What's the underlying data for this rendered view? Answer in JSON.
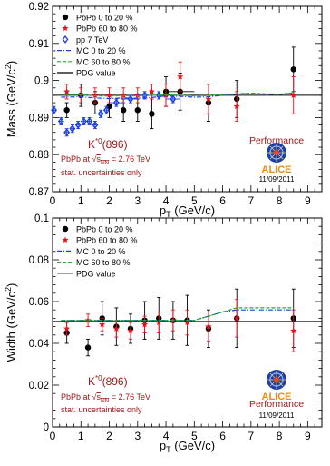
{
  "colors": {
    "pbpb_central": "#000000",
    "pbpb_peripheral": "#e8101a",
    "pp": "#1a3ee0",
    "mc_central": "#1a3ee0",
    "mc_peripheral": "#22b022",
    "pdg": "#000000",
    "annotation": "#a01818"
  },
  "chart_data": [
    {
      "type": "scatter",
      "xlabel": "p_T (GeV/c)",
      "ylabel": "Mass (GeV/c^2)",
      "xlim": [
        0,
        9.5
      ],
      "ylim": [
        0.87,
        0.92
      ],
      "xticks": [
        0,
        1,
        2,
        3,
        4,
        5,
        6,
        7,
        8,
        9
      ],
      "yticks": [
        "0.87",
        "0.88",
        "0.89",
        "0.9",
        "0.91",
        "0.92"
      ],
      "legend_position": "top-left",
      "legend": [
        {
          "name": "PbPb 0 to 20 %",
          "key": "pbpb_central",
          "marker": "circle"
        },
        {
          "name": "PbPb 60 to 80 %",
          "key": "pbpb_peripheral",
          "marker": "star"
        },
        {
          "name": "pp 7 TeV",
          "key": "pp",
          "marker": "diamond"
        },
        {
          "name": "MC 0 to 20 %",
          "key": "mc_central",
          "marker": "dashdot"
        },
        {
          "name": "MC 60 to 80 %",
          "key": "mc_peripheral",
          "marker": "dash"
        },
        {
          "name": "PDG value",
          "key": "pdg",
          "marker": "line"
        }
      ],
      "annotation": {
        "particle": "K*0(896)",
        "system": "PbPb at √sNN = 2.76 TeV",
        "note": "stat. uncertainties only"
      },
      "badge": {
        "performance": "Performance",
        "logo_text": "ALICE",
        "date": "11/09/2011"
      },
      "pdg_value": 0.896,
      "series": [
        {
          "name": "PbPb 0 to 20 %",
          "key": "pbpb_central",
          "marker": "circle",
          "x": [
            0.5,
            1.0,
            1.5,
            2.0,
            2.5,
            3.0,
            3.5,
            4.0,
            4.5,
            5.5,
            6.5,
            8.5
          ],
          "y": [
            0.892,
            0.896,
            0.894,
            0.893,
            0.892,
            0.892,
            0.891,
            0.897,
            0.897,
            0.894,
            0.895,
            0.903
          ],
          "err": [
            0.002,
            0.003,
            0.003,
            0.003,
            0.003,
            0.003,
            0.004,
            0.004,
            0.005,
            0.005,
            0.005,
            0.006
          ],
          "xerr": [
            0,
            0,
            0,
            0,
            0,
            0,
            0,
            0,
            0.5,
            0,
            0,
            0
          ]
        },
        {
          "name": "PbPb 60 to 80 %",
          "key": "pbpb_peripheral",
          "marker": "star",
          "x": [
            0.5,
            1.0,
            1.5,
            2.0,
            2.5,
            3.0,
            3.5,
            4.0,
            4.5,
            5.5,
            6.5,
            8.5
          ],
          "y": [
            0.897,
            0.896,
            0.896,
            0.896,
            0.896,
            0.896,
            0.897,
            0.896,
            0.901,
            0.895,
            0.893,
            0.896
          ],
          "err": [
            0.002,
            0.002,
            0.002,
            0.002,
            0.002,
            0.002,
            0.002,
            0.003,
            0.004,
            0.004,
            0.004,
            0.005
          ],
          "xerr": [
            0,
            0,
            0,
            0,
            0,
            0,
            0,
            0,
            0,
            0,
            0,
            0
          ]
        },
        {
          "name": "pp 7 TeV",
          "key": "pp",
          "marker": "diamond",
          "x": [
            0.05,
            0.3,
            0.5,
            0.7,
            0.9,
            1.1,
            1.3,
            1.5,
            1.7,
            1.9,
            2.25,
            2.75,
            3.25,
            3.75,
            4.25
          ],
          "y": [
            0.892,
            0.889,
            0.886,
            0.887,
            0.888,
            0.889,
            0.889,
            0.888,
            0.891,
            0.892,
            0.894,
            0.895,
            0.896,
            0.896,
            0.895
          ],
          "err": [
            0.001,
            0.001,
            0.001,
            0.001,
            0.001,
            0.001,
            0.001,
            0.001,
            0.001,
            0.001,
            0.001,
            0.001,
            0.001,
            0.001,
            0.001
          ],
          "xerr": [
            0.05,
            0.1,
            0.1,
            0.1,
            0.1,
            0.1,
            0.1,
            0.1,
            0.1,
            0.1,
            0.25,
            0.25,
            0.25,
            0.25,
            0.25
          ]
        },
        {
          "name": "MC 0 to 20 %",
          "key": "mc_central",
          "marker": "dashdot",
          "x": [
            0.3,
            1,
            1.5,
            2,
            2.5,
            3,
            3.5,
            4,
            4.5,
            5,
            5.5,
            6,
            6.5,
            7,
            7.5,
            8,
            8.5
          ],
          "y": [
            0.8955,
            0.8956,
            0.8953,
            0.8951,
            0.8953,
            0.8952,
            0.8954,
            0.8958,
            0.8957,
            0.8955,
            0.8956,
            0.896,
            0.8963,
            0.8965,
            0.8963,
            0.8962,
            0.8966
          ]
        },
        {
          "name": "MC 60 to 80 %",
          "key": "mc_peripheral",
          "marker": "dash",
          "x": [
            0.3,
            1,
            1.5,
            2,
            2.5,
            3,
            3.5,
            4,
            4.5,
            5,
            5.5,
            6,
            6.5,
            7,
            7.5,
            8,
            8.5
          ],
          "y": [
            0.8962,
            0.8962,
            0.8958,
            0.8958,
            0.8959,
            0.8958,
            0.896,
            0.8961,
            0.896,
            0.8958,
            0.8959,
            0.8962,
            0.8964,
            0.8966,
            0.8964,
            0.8963,
            0.8967
          ]
        }
      ]
    },
    {
      "type": "scatter",
      "xlabel": "p_T (GeV/c)",
      "ylabel": "Width (GeV/c^2)",
      "xlim": [
        0,
        9.5
      ],
      "ylim": [
        0,
        0.1
      ],
      "xticks": [
        0,
        1,
        2,
        3,
        4,
        5,
        6,
        7,
        8,
        9
      ],
      "yticks": [
        "0",
        "0.02",
        "0.04",
        "0.06",
        "0.08",
        "0.1"
      ],
      "legend_position": "top-left",
      "legend": [
        {
          "name": "PbPb 0 to 20 %",
          "key": "pbpb_central",
          "marker": "circle"
        },
        {
          "name": "PbPb 60 to 80 %",
          "key": "pbpb_peripheral",
          "marker": "star"
        },
        {
          "name": "MC 0 to 20 %",
          "key": "mc_central",
          "marker": "dashdot"
        },
        {
          "name": "MC 60 to 80 %",
          "key": "mc_peripheral",
          "marker": "dash"
        },
        {
          "name": "PDG value",
          "key": "pdg",
          "marker": "line"
        }
      ],
      "annotation": {
        "particle": "K*0(896)",
        "system": "PbPb at √sNN = 2.76 TeV",
        "note": "stat. uncertainties only"
      },
      "badge": {
        "performance": "Performance",
        "logo_text": "ALICE",
        "date": "11/09/2011"
      },
      "pdg_value": 0.0505,
      "series": [
        {
          "name": "PbPb 0 to 20 %",
          "key": "pbpb_central",
          "marker": "circle",
          "x": [
            0.5,
            1.25,
            1.75,
            2.25,
            2.75,
            3.25,
            3.75,
            4.25,
            4.75,
            5.5,
            6.5,
            8.5
          ],
          "y": [
            0.045,
            0.038,
            0.052,
            0.048,
            0.047,
            0.051,
            0.052,
            0.051,
            0.051,
            0.047,
            0.052,
            0.052
          ],
          "err": [
            0.005,
            0.004,
            0.008,
            0.009,
            0.007,
            0.009,
            0.01,
            0.009,
            0.012,
            0.009,
            0.014,
            0.014
          ],
          "xerr": [
            0,
            0,
            0,
            0,
            0,
            0,
            0,
            0,
            0,
            0,
            0,
            0
          ]
        },
        {
          "name": "PbPb 60 to 80 %",
          "key": "pbpb_peripheral",
          "marker": "star",
          "x": [
            0.5,
            1.25,
            1.75,
            2.25,
            2.75,
            3.25,
            3.75,
            4.25,
            4.75,
            5.5,
            6.5,
            8.5
          ],
          "y": [
            0.047,
            0.051,
            0.049,
            0.047,
            0.046,
            0.049,
            0.05,
            0.051,
            0.05,
            0.048,
            0.052,
            0.046
          ],
          "err": [
            0.003,
            0.003,
            0.003,
            0.004,
            0.004,
            0.004,
            0.005,
            0.005,
            0.006,
            0.007,
            0.009,
            0.01
          ],
          "xerr": [
            0,
            0,
            0,
            0,
            0,
            0,
            0,
            0,
            0,
            0,
            0,
            0
          ]
        },
        {
          "name": "MC 0 to 20 %",
          "key": "mc_central",
          "marker": "dashdot",
          "x": [
            0.3,
            1,
            2,
            3,
            4,
            5,
            5.5,
            6,
            6.5,
            7,
            7.5,
            8,
            8.5
          ],
          "y": [
            0.051,
            0.051,
            0.051,
            0.051,
            0.051,
            0.051,
            0.053,
            0.055,
            0.056,
            0.056,
            0.056,
            0.056,
            0.056
          ]
        },
        {
          "name": "MC 60 to 80 %",
          "key": "mc_peripheral",
          "marker": "dash",
          "x": [
            0.3,
            1,
            2,
            3,
            4,
            5,
            5.5,
            6,
            6.5,
            7,
            7.5,
            8,
            8.5
          ],
          "y": [
            0.051,
            0.051,
            0.051,
            0.051,
            0.051,
            0.051,
            0.053,
            0.055,
            0.057,
            0.057,
            0.057,
            0.057,
            0.057
          ]
        }
      ]
    }
  ]
}
